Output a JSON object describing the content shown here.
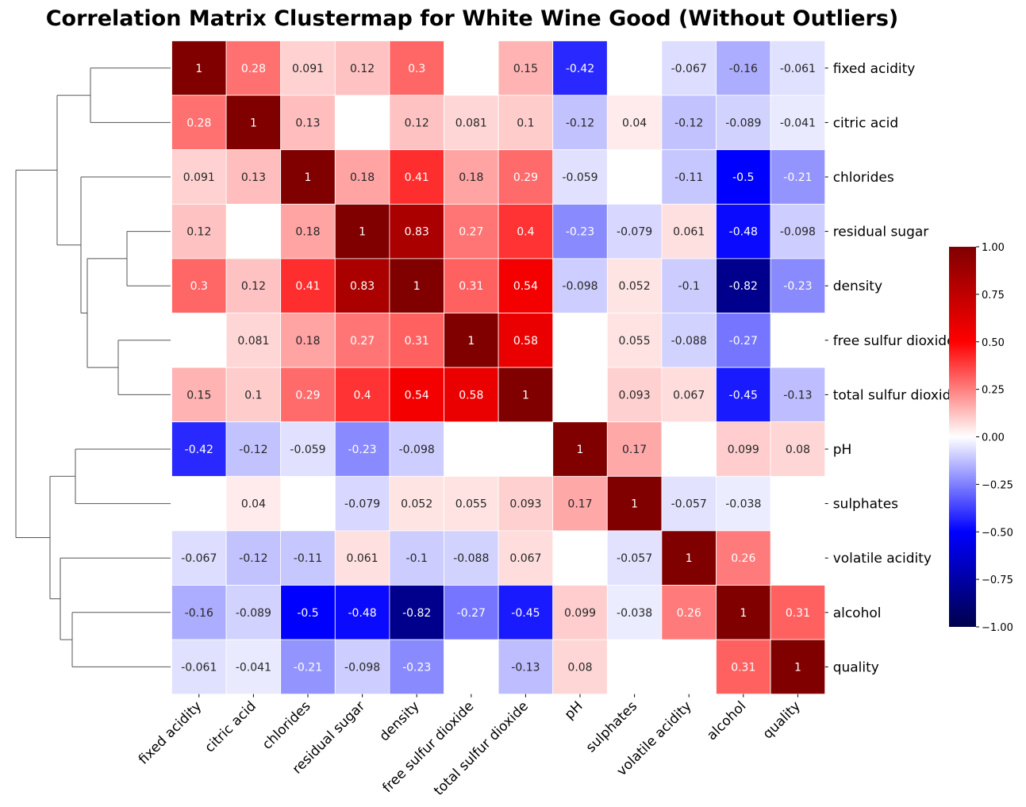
{
  "chart_data": {
    "type": "heatmap",
    "title": "Correlation Matrix Clustermap for White Wine Good (Without Outliers)",
    "row_labels": [
      "fixed acidity",
      "citric acid",
      "chlorides",
      "residual sugar",
      "density",
      "free sulfur dioxide",
      "total sulfur dioxide",
      "pH",
      "sulphates",
      "volatile acidity",
      "alcohol",
      "quality"
    ],
    "col_labels": [
      "fixed acidity",
      "citric acid",
      "chlorides",
      "residual sugar",
      "density",
      "free sulfur dioxide",
      "total sulfur dioxide",
      "pH",
      "sulphates",
      "volatile acidity",
      "alcohol",
      "quality"
    ],
    "values": [
      [
        1,
        0.28,
        0.091,
        0.12,
        0.3,
        null,
        0.15,
        -0.42,
        null,
        -0.067,
        -0.16,
        -0.061
      ],
      [
        0.28,
        1,
        0.13,
        null,
        0.12,
        0.081,
        0.1,
        -0.12,
        0.04,
        -0.12,
        -0.089,
        -0.041
      ],
      [
        0.091,
        0.13,
        1,
        0.18,
        0.41,
        0.18,
        0.29,
        -0.059,
        null,
        -0.11,
        -0.5,
        -0.21
      ],
      [
        0.12,
        null,
        0.18,
        1,
        0.83,
        0.27,
        0.4,
        -0.23,
        -0.079,
        0.061,
        -0.48,
        -0.098
      ],
      [
        0.3,
        0.12,
        0.41,
        0.83,
        1,
        0.31,
        0.54,
        -0.098,
        0.052,
        -0.1,
        -0.82,
        -0.23
      ],
      [
        null,
        0.081,
        0.18,
        0.27,
        0.31,
        1,
        0.58,
        null,
        0.055,
        -0.088,
        -0.27,
        null
      ],
      [
        0.15,
        0.1,
        0.29,
        0.4,
        0.54,
        0.58,
        1,
        null,
        0.093,
        0.067,
        -0.45,
        -0.13
      ],
      [
        -0.42,
        -0.12,
        -0.059,
        -0.23,
        -0.098,
        null,
        null,
        1,
        0.17,
        null,
        0.099,
        0.08
      ],
      [
        null,
        0.04,
        null,
        -0.079,
        0.052,
        0.055,
        0.093,
        0.17,
        1,
        -0.057,
        -0.038,
        null
      ],
      [
        -0.067,
        -0.12,
        -0.11,
        0.061,
        -0.1,
        -0.088,
        0.067,
        null,
        -0.057,
        1,
        0.26,
        null
      ],
      [
        -0.16,
        -0.089,
        -0.5,
        -0.48,
        -0.82,
        -0.27,
        -0.45,
        0.099,
        -0.038,
        0.26,
        1,
        0.31
      ],
      [
        -0.061,
        -0.041,
        -0.21,
        -0.098,
        -0.23,
        null,
        -0.13,
        0.08,
        null,
        null,
        0.31,
        1
      ]
    ],
    "colormap": "seismic",
    "vmin": -1,
    "vmax": 1,
    "colorbar_ticks": [
      "1.00",
      "0.75",
      "0.50",
      "0.25",
      "0.00",
      "−0.25",
      "−0.50",
      "−0.75",
      "−1.00"
    ],
    "dendrogram": "rows",
    "legend_position": "right"
  }
}
